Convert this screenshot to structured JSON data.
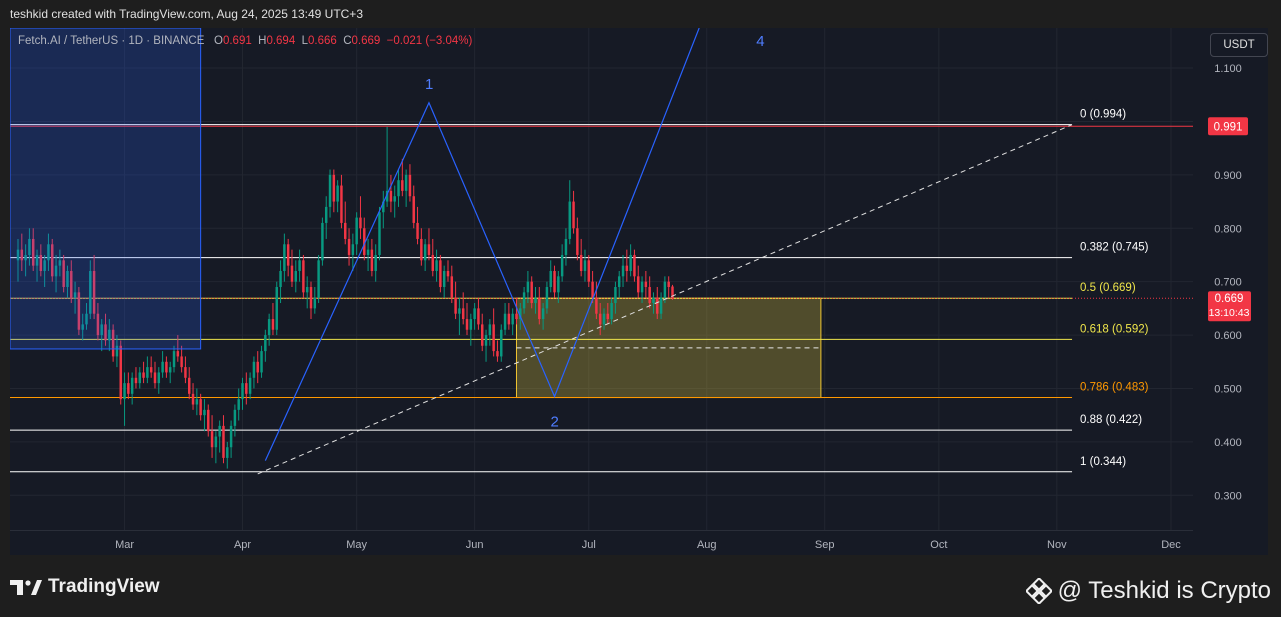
{
  "header": {
    "credit": "teshkid created with TradingView.com, Aug 24, 2025 13:49 UTC+3"
  },
  "legend": {
    "symbol": "Fetch.AI / TetherUS · 1D · BINANCE",
    "o_label": "O",
    "o": "0.691",
    "h_label": "H",
    "h": "0.694",
    "l_label": "L",
    "l": "0.666",
    "c_label": "C",
    "c": "0.669",
    "change": "−0.021 (−3.04%)"
  },
  "currency_button": "USDT",
  "footer": {
    "logo_text": "TradingView",
    "watermark": "@ Teshkid is Crypto"
  },
  "colors": {
    "up": "#089981",
    "down": "#f23645",
    "wave": "#2962ff",
    "fib_white": "#ffffff",
    "fib_yellow": "#f0e64b",
    "fib_orange": "#ff9800",
    "zone_fill": "rgba(200,180,60,0.33)",
    "top_box": "rgba(41,98,255,0.22)"
  },
  "chart_data": {
    "type": "candlestick",
    "symbol": "Fetch.AI / TetherUS",
    "timeframe": "1D",
    "exchange": "BINANCE",
    "y_axis": {
      "ticks": [
        "1.100",
        "1.000",
        "0.900",
        "0.800",
        "0.700",
        "0.600",
        "0.500",
        "0.400",
        "0.300"
      ],
      "ylim": [
        0.235,
        1.175
      ]
    },
    "x_axis": {
      "ticks": [
        "Mar",
        "Apr",
        "May",
        "Jun",
        "Jul",
        "Aug",
        "Sep",
        "Oct",
        "Nov",
        "Dec"
      ]
    },
    "last_price": "0.669",
    "countdown": "13:10:43",
    "top_level_marker": "0.991",
    "fib_levels": [
      {
        "label": "0 (0.994)",
        "value": 0.994,
        "color": "#ffffff"
      },
      {
        "label": "0.382 (0.745)",
        "value": 0.745,
        "color": "#ffffff"
      },
      {
        "label": "0.5 (0.669)",
        "value": 0.669,
        "color": "#f0e64b"
      },
      {
        "label": "0.618 (0.592)",
        "value": 0.592,
        "color": "#f0e64b"
      },
      {
        "label": "0.786 (0.483)",
        "value": 0.483,
        "color": "#ff9800"
      },
      {
        "label": "0.88 (0.422)",
        "value": 0.422,
        "color": "#ffffff"
      },
      {
        "label": "1 (0.344)",
        "value": 0.344,
        "color": "#ffffff"
      }
    ],
    "wave_labels": [
      "1",
      "2",
      "4"
    ],
    "wave_points": [
      {
        "date": "2025-04-07",
        "price": 0.365
      },
      {
        "date": "2025-05-20",
        "price": 1.035
      },
      {
        "date": "2025-06-22",
        "price": 0.485
      },
      {
        "date": "2025-08-07",
        "price": 1.32
      }
    ],
    "trendline": [
      {
        "date": "2025-04-05",
        "price": 0.34
      },
      {
        "date": "2025-11-05",
        "price": 0.994
      }
    ],
    "zone": {
      "date_start": "2025-06-12",
      "date_end": "2025-08-31",
      "price_high": 0.669,
      "price_low": 0.483,
      "mid_price": 0.576
    },
    "candles_start": "2025-02-01",
    "candles": [
      [
        0.74,
        0.78,
        0.7,
        0.76
      ],
      [
        0.76,
        0.79,
        0.72,
        0.74
      ],
      [
        0.74,
        0.77,
        0.71,
        0.75
      ],
      [
        0.75,
        0.8,
        0.73,
        0.78
      ],
      [
        0.78,
        0.8,
        0.72,
        0.73
      ],
      [
        0.73,
        0.76,
        0.7,
        0.75
      ],
      [
        0.75,
        0.77,
        0.71,
        0.72
      ],
      [
        0.72,
        0.75,
        0.69,
        0.74
      ],
      [
        0.74,
        0.79,
        0.72,
        0.77
      ],
      [
        0.77,
        0.78,
        0.7,
        0.71
      ],
      [
        0.71,
        0.75,
        0.68,
        0.73
      ],
      [
        0.73,
        0.76,
        0.71,
        0.74
      ],
      [
        0.74,
        0.75,
        0.68,
        0.69
      ],
      [
        0.69,
        0.73,
        0.67,
        0.72
      ],
      [
        0.72,
        0.74,
        0.66,
        0.67
      ],
      [
        0.67,
        0.7,
        0.64,
        0.68
      ],
      [
        0.68,
        0.69,
        0.6,
        0.61
      ],
      [
        0.61,
        0.64,
        0.59,
        0.62
      ],
      [
        0.62,
        0.66,
        0.61,
        0.64
      ],
      [
        0.64,
        0.74,
        0.63,
        0.72
      ],
      [
        0.72,
        0.75,
        0.63,
        0.64
      ],
      [
        0.64,
        0.66,
        0.59,
        0.6
      ],
      [
        0.6,
        0.63,
        0.57,
        0.62
      ],
      [
        0.62,
        0.64,
        0.58,
        0.59
      ],
      [
        0.59,
        0.63,
        0.57,
        0.61
      ],
      [
        0.61,
        0.62,
        0.55,
        0.56
      ],
      [
        0.56,
        0.6,
        0.54,
        0.58
      ],
      [
        0.58,
        0.59,
        0.47,
        0.48
      ],
      [
        0.48,
        0.53,
        0.43,
        0.51
      ],
      [
        0.51,
        0.53,
        0.48,
        0.49
      ],
      [
        0.49,
        0.53,
        0.47,
        0.52
      ],
      [
        0.52,
        0.54,
        0.5,
        0.51
      ],
      [
        0.51,
        0.54,
        0.5,
        0.53
      ],
      [
        0.53,
        0.55,
        0.51,
        0.52
      ],
      [
        0.52,
        0.56,
        0.51,
        0.54
      ],
      [
        0.54,
        0.56,
        0.52,
        0.53
      ],
      [
        0.53,
        0.55,
        0.5,
        0.51
      ],
      [
        0.51,
        0.54,
        0.49,
        0.53
      ],
      [
        0.53,
        0.57,
        0.52,
        0.55
      ],
      [
        0.55,
        0.56,
        0.52,
        0.53
      ],
      [
        0.53,
        0.55,
        0.51,
        0.54
      ],
      [
        0.54,
        0.58,
        0.53,
        0.57
      ],
      [
        0.57,
        0.6,
        0.55,
        0.56
      ],
      [
        0.56,
        0.58,
        0.53,
        0.54
      ],
      [
        0.54,
        0.56,
        0.51,
        0.52
      ],
      [
        0.52,
        0.54,
        0.48,
        0.49
      ],
      [
        0.49,
        0.51,
        0.46,
        0.47
      ],
      [
        0.47,
        0.5,
        0.45,
        0.48
      ],
      [
        0.48,
        0.49,
        0.44,
        0.45
      ],
      [
        0.45,
        0.48,
        0.42,
        0.46
      ],
      [
        0.46,
        0.47,
        0.41,
        0.42
      ],
      [
        0.42,
        0.45,
        0.37,
        0.39
      ],
      [
        0.39,
        0.42,
        0.36,
        0.41
      ],
      [
        0.41,
        0.44,
        0.38,
        0.43
      ],
      [
        0.43,
        0.45,
        0.36,
        0.37
      ],
      [
        0.37,
        0.4,
        0.35,
        0.39
      ],
      [
        0.39,
        0.44,
        0.37,
        0.43
      ],
      [
        0.43,
        0.47,
        0.41,
        0.46
      ],
      [
        0.46,
        0.5,
        0.44,
        0.48
      ],
      [
        0.48,
        0.52,
        0.46,
        0.51
      ],
      [
        0.51,
        0.53,
        0.47,
        0.49
      ],
      [
        0.49,
        0.53,
        0.48,
        0.52
      ],
      [
        0.52,
        0.56,
        0.5,
        0.55
      ],
      [
        0.55,
        0.57,
        0.51,
        0.53
      ],
      [
        0.53,
        0.58,
        0.52,
        0.57
      ],
      [
        0.57,
        0.61,
        0.55,
        0.6
      ],
      [
        0.6,
        0.64,
        0.58,
        0.63
      ],
      [
        0.63,
        0.66,
        0.6,
        0.61
      ],
      [
        0.61,
        0.7,
        0.6,
        0.69
      ],
      [
        0.69,
        0.74,
        0.66,
        0.72
      ],
      [
        0.72,
        0.79,
        0.7,
        0.77
      ],
      [
        0.77,
        0.78,
        0.71,
        0.73
      ],
      [
        0.73,
        0.76,
        0.69,
        0.7
      ],
      [
        0.7,
        0.74,
        0.68,
        0.72
      ],
      [
        0.72,
        0.76,
        0.7,
        0.74
      ],
      [
        0.74,
        0.75,
        0.67,
        0.68
      ],
      [
        0.68,
        0.71,
        0.65,
        0.69
      ],
      [
        0.69,
        0.7,
        0.63,
        0.65
      ],
      [
        0.65,
        0.69,
        0.64,
        0.67
      ],
      [
        0.67,
        0.75,
        0.66,
        0.74
      ],
      [
        0.74,
        0.82,
        0.73,
        0.81
      ],
      [
        0.81,
        0.86,
        0.78,
        0.84
      ],
      [
        0.84,
        0.91,
        0.82,
        0.9
      ],
      [
        0.9,
        0.91,
        0.83,
        0.85
      ],
      [
        0.85,
        0.89,
        0.83,
        0.88
      ],
      [
        0.88,
        0.9,
        0.8,
        0.81
      ],
      [
        0.81,
        0.85,
        0.77,
        0.78
      ],
      [
        0.78,
        0.8,
        0.73,
        0.75
      ],
      [
        0.75,
        0.79,
        0.72,
        0.77
      ],
      [
        0.77,
        0.83,
        0.75,
        0.82
      ],
      [
        0.82,
        0.86,
        0.78,
        0.8
      ],
      [
        0.8,
        0.82,
        0.74,
        0.75
      ],
      [
        0.75,
        0.78,
        0.72,
        0.76
      ],
      [
        0.76,
        0.78,
        0.71,
        0.72
      ],
      [
        0.72,
        0.77,
        0.7,
        0.75
      ],
      [
        0.75,
        0.84,
        0.74,
        0.83
      ],
      [
        0.83,
        0.87,
        0.8,
        0.85
      ],
      [
        0.85,
        0.99,
        0.84,
        0.87
      ],
      [
        0.87,
        0.9,
        0.83,
        0.85
      ],
      [
        0.85,
        0.88,
        0.82,
        0.86
      ],
      [
        0.86,
        0.91,
        0.84,
        0.89
      ],
      [
        0.89,
        0.93,
        0.86,
        0.87
      ],
      [
        0.87,
        0.91,
        0.84,
        0.9
      ],
      [
        0.9,
        0.92,
        0.85,
        0.86
      ],
      [
        0.86,
        0.88,
        0.8,
        0.81
      ],
      [
        0.81,
        0.84,
        0.77,
        0.78
      ],
      [
        0.78,
        0.8,
        0.73,
        0.74
      ],
      [
        0.74,
        0.78,
        0.72,
        0.77
      ],
      [
        0.77,
        0.8,
        0.74,
        0.75
      ],
      [
        0.75,
        0.78,
        0.71,
        0.72
      ],
      [
        0.72,
        0.76,
        0.7,
        0.74
      ],
      [
        0.74,
        0.75,
        0.68,
        0.69
      ],
      [
        0.69,
        0.73,
        0.67,
        0.72
      ],
      [
        0.72,
        0.74,
        0.7,
        0.71
      ],
      [
        0.71,
        0.73,
        0.66,
        0.67
      ],
      [
        0.67,
        0.7,
        0.63,
        0.64
      ],
      [
        0.64,
        0.67,
        0.6,
        0.65
      ],
      [
        0.65,
        0.68,
        0.62,
        0.63
      ],
      [
        0.63,
        0.66,
        0.6,
        0.61
      ],
      [
        0.61,
        0.64,
        0.58,
        0.63
      ],
      [
        0.63,
        0.66,
        0.61,
        0.65
      ],
      [
        0.65,
        0.67,
        0.61,
        0.62
      ],
      [
        0.62,
        0.64,
        0.57,
        0.58
      ],
      [
        0.58,
        0.61,
        0.55,
        0.6
      ],
      [
        0.6,
        0.63,
        0.58,
        0.62
      ],
      [
        0.62,
        0.65,
        0.56,
        0.57
      ],
      [
        0.57,
        0.59,
        0.55,
        0.56
      ],
      [
        0.56,
        0.62,
        0.55,
        0.61
      ],
      [
        0.61,
        0.66,
        0.6,
        0.64
      ],
      [
        0.64,
        0.66,
        0.61,
        0.62
      ],
      [
        0.62,
        0.65,
        0.6,
        0.64
      ],
      [
        0.64,
        0.67,
        0.62,
        0.63
      ],
      [
        0.63,
        0.66,
        0.61,
        0.65
      ],
      [
        0.65,
        0.69,
        0.64,
        0.68
      ],
      [
        0.68,
        0.72,
        0.66,
        0.7
      ],
      [
        0.7,
        0.71,
        0.65,
        0.66
      ],
      [
        0.66,
        0.69,
        0.64,
        0.67
      ],
      [
        0.67,
        0.69,
        0.62,
        0.63
      ],
      [
        0.63,
        0.66,
        0.61,
        0.65
      ],
      [
        0.65,
        0.7,
        0.64,
        0.69
      ],
      [
        0.69,
        0.74,
        0.68,
        0.72
      ],
      [
        0.72,
        0.73,
        0.67,
        0.68
      ],
      [
        0.68,
        0.72,
        0.66,
        0.71
      ],
      [
        0.71,
        0.77,
        0.7,
        0.75
      ],
      [
        0.75,
        0.8,
        0.73,
        0.78
      ],
      [
        0.78,
        0.89,
        0.77,
        0.85
      ],
      [
        0.85,
        0.87,
        0.79,
        0.8
      ],
      [
        0.8,
        0.82,
        0.74,
        0.75
      ],
      [
        0.75,
        0.78,
        0.71,
        0.72
      ],
      [
        0.72,
        0.76,
        0.7,
        0.74
      ],
      [
        0.74,
        0.75,
        0.69,
        0.7
      ],
      [
        0.7,
        0.72,
        0.66,
        0.67
      ],
      [
        0.67,
        0.7,
        0.63,
        0.64
      ],
      [
        0.64,
        0.66,
        0.6,
        0.62
      ],
      [
        0.62,
        0.65,
        0.61,
        0.64
      ],
      [
        0.64,
        0.66,
        0.62,
        0.63
      ],
      [
        0.63,
        0.67,
        0.62,
        0.66
      ],
      [
        0.66,
        0.7,
        0.64,
        0.69
      ],
      [
        0.69,
        0.72,
        0.67,
        0.71
      ],
      [
        0.71,
        0.75,
        0.69,
        0.73
      ],
      [
        0.73,
        0.76,
        0.7,
        0.72
      ],
      [
        0.72,
        0.77,
        0.71,
        0.75
      ],
      [
        0.75,
        0.76,
        0.7,
        0.71
      ],
      [
        0.71,
        0.73,
        0.67,
        0.68
      ],
      [
        0.68,
        0.71,
        0.66,
        0.7
      ],
      [
        0.7,
        0.72,
        0.67,
        0.69
      ],
      [
        0.69,
        0.71,
        0.65,
        0.66
      ],
      [
        0.66,
        0.68,
        0.64,
        0.67
      ],
      [
        0.67,
        0.69,
        0.63,
        0.64
      ],
      [
        0.64,
        0.68,
        0.63,
        0.67
      ],
      [
        0.67,
        0.71,
        0.66,
        0.7
      ],
      [
        0.7,
        0.71,
        0.67,
        0.69
      ],
      [
        0.691,
        0.694,
        0.666,
        0.669
      ]
    ]
  }
}
